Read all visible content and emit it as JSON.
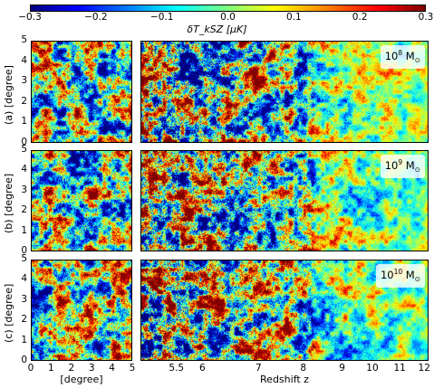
{
  "colorbar": {
    "label": "δT_kSZ [μK]",
    "ticks": [
      "−0.3",
      "−0.2",
      "−0.1",
      "0.0",
      "0.1",
      "0.2",
      "0.3"
    ],
    "range": [
      -0.3,
      0.3
    ],
    "colormap": "jet"
  },
  "rows": [
    {
      "row_label": "(a) [degree]",
      "halo_mass_base": "10",
      "halo_mass_exp": "8",
      "halo_mass_unit": "M",
      "halo_mass_sub": "⊙"
    },
    {
      "row_label": "(b) [degree]",
      "halo_mass_base": "10",
      "halo_mass_exp": "9",
      "halo_mass_unit": "M",
      "halo_mass_sub": "⊙"
    },
    {
      "row_label": "(c) [degree]",
      "halo_mass_base": "10",
      "halo_mass_exp": "10",
      "halo_mass_unit": "M",
      "halo_mass_sub": "⊙"
    }
  ],
  "y_ticks": [
    "0",
    "1",
    "2",
    "3",
    "4",
    "5"
  ],
  "x_ticks_left": [
    "0",
    "1",
    "2",
    "3",
    "4",
    "5"
  ],
  "x_label_left": "[degree]",
  "x_ticks_right": [
    "5.5",
    "6",
    "7",
    "8",
    "9",
    "10",
    "11",
    "12"
  ],
  "x_label_right": "Redshift z",
  "colors": {
    "min": "#00007f",
    "low": "#0000ff",
    "mid_low": "#00ffff",
    "mid": "#7fff7f",
    "mid_high": "#ffff00",
    "high": "#ff0000",
    "max": "#7f0000"
  }
}
